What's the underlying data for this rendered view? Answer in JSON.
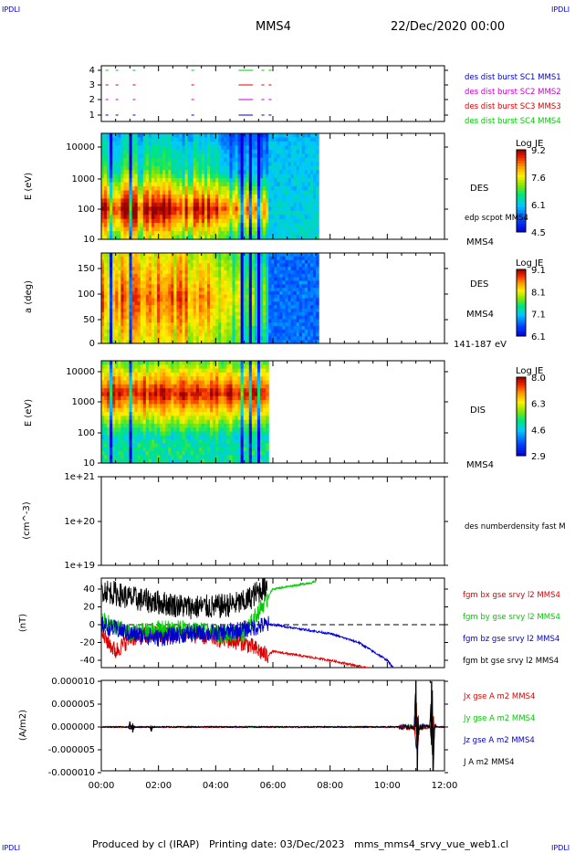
{
  "header": {
    "left_corner": "IPDLI",
    "right_corner": "IPDLI",
    "spacecraft": "MMS4",
    "date": "22/Dec/2020 00:00"
  },
  "footer": {
    "produced_by": "Produced by cl (IRAP)",
    "printing_date": "Printing date: 03/Dec/2023",
    "filename": "mms_mms4_srvy_vue_web1.cl",
    "left_corner": "IPDLI",
    "right_corner": "IPDLI"
  },
  "time_axis": {
    "ticks": [
      "00:00",
      "02:00",
      "04:00",
      "06:00",
      "08:00",
      "10:00",
      "12:00"
    ],
    "range_hours": [
      0,
      12
    ]
  },
  "colors": {
    "red": "#dd0000",
    "green": "#00cc00",
    "blue": "#0000cc",
    "black": "#000000",
    "magenta": "#cc00cc",
    "label_blue": "#0000cc",
    "label_magenta": "#cc00cc",
    "label_red": "#dd0000",
    "label_green": "#00cc00"
  },
  "chart_data": [
    {
      "type": "scatter",
      "panel": "burst",
      "yticks": [
        "4",
        "3",
        "2",
        "1"
      ],
      "legend": [
        {
          "label": "des dist burst SC1 MMS1",
          "color": "#0000cc"
        },
        {
          "label": "des dist burst SC2 MMS2",
          "color": "#cc00cc"
        },
        {
          "label": "des dist burst SC3 MMS3",
          "color": "#dd0000"
        },
        {
          "label": "des dist burst SC4 MMS4",
          "color": "#00cc00"
        }
      ],
      "series": [
        {
          "level": 4,
          "color": "#00cc00",
          "intervals_hours": [
            [
              0.15,
              0.2
            ],
            [
              0.5,
              0.55
            ],
            [
              1.1,
              1.15
            ],
            [
              3.15,
              3.2
            ],
            [
              4.8,
              5.3
            ],
            [
              5.6,
              5.7
            ],
            [
              5.85,
              5.95
            ]
          ]
        },
        {
          "level": 3,
          "color": "#dd0000",
          "intervals_hours": [
            [
              0.15,
              0.2
            ],
            [
              0.5,
              0.55
            ],
            [
              1.1,
              1.15
            ],
            [
              3.15,
              3.2
            ],
            [
              4.8,
              5.3
            ],
            [
              5.6,
              5.7
            ],
            [
              5.85,
              5.95
            ]
          ]
        },
        {
          "level": 2,
          "color": "#cc00cc",
          "intervals_hours": [
            [
              0.15,
              0.2
            ],
            [
              0.5,
              0.55
            ],
            [
              1.1,
              1.15
            ],
            [
              3.15,
              3.2
            ],
            [
              4.8,
              5.3
            ],
            [
              5.6,
              5.7
            ],
            [
              5.85,
              5.95
            ]
          ]
        },
        {
          "level": 1,
          "color": "#0000cc",
          "intervals_hours": [
            [
              0.15,
              0.2
            ],
            [
              0.5,
              0.55
            ],
            [
              1.1,
              1.15
            ],
            [
              3.15,
              3.2
            ],
            [
              4.8,
              5.3
            ],
            [
              5.6,
              5.7
            ],
            [
              5.85,
              5.95
            ]
          ]
        }
      ]
    },
    {
      "type": "heatmap",
      "panel": "des_energy",
      "ylabel": "E (eV)",
      "yticks": [
        "10000",
        "1000",
        "100",
        "10"
      ],
      "ylim_log": [
        10,
        30000
      ],
      "species": "DES",
      "overlay_label": "edp scpot MMS4",
      "bottom_label": "MMS4",
      "colorbar": {
        "title": "Log JE",
        "ticks": [
          "9.2",
          "7.6",
          "6.1",
          "4.5"
        ]
      },
      "data_end_hours": 7.6
    },
    {
      "type": "heatmap",
      "panel": "des_pitch",
      "ylabel": "a (deg)",
      "yticks": [
        "150",
        "100",
        "50",
        "0"
      ],
      "ylim": [
        0,
        180
      ],
      "species": "DES",
      "sc_label": "MMS4",
      "bottom_label": "141-187 eV",
      "colorbar": {
        "title": "Log JE",
        "ticks": [
          "9.1",
          "8.1",
          "7.1",
          "6.1"
        ]
      },
      "data_end_hours": 7.6
    },
    {
      "type": "heatmap",
      "panel": "dis_energy",
      "ylabel": "E (eV)",
      "yticks": [
        "10000",
        "1000",
        "100",
        "10"
      ],
      "ylim_log": [
        10,
        30000
      ],
      "species": "DIS",
      "bottom_label": "MMS4",
      "colorbar": {
        "title": "Log JE",
        "ticks": [
          "8.0",
          "6.3",
          "4.6",
          "2.9"
        ]
      },
      "data_end_hours": 7.6
    },
    {
      "type": "line",
      "panel": "density",
      "ylabel": "(cm^-3)",
      "yticks": [
        "1e+21",
        "1e+20",
        "1e+19"
      ],
      "legend": [
        {
          "label": "des numberdensity fast M",
          "color": "#000000"
        }
      ],
      "values": []
    },
    {
      "type": "line",
      "panel": "magnetic",
      "ylabel": "(nT)",
      "yticks": [
        "40",
        "20",
        "0",
        "-20",
        "-40"
      ],
      "ylim": [
        -50,
        50
      ],
      "legend": [
        {
          "label": "fgm bx gse srvy l2 MMS4",
          "color": "#dd0000"
        },
        {
          "label": "fgm by gse srvy l2 MMS4",
          "color": "#00cc00"
        },
        {
          "label": "fgm bz gse srvy l2 MMS4",
          "color": "#0000cc"
        },
        {
          "label": "fgm bt gse srvy l2 MMS4",
          "color": "#000000"
        }
      ],
      "series": [
        {
          "name": "fgm bx gse srvy l2 MMS4",
          "x": [
            0,
            0.5,
            1,
            2,
            3,
            4,
            5,
            5.8,
            6,
            7,
            8,
            9.5
          ],
          "y": [
            -10,
            -30,
            -15,
            -10,
            -10,
            -15,
            -20,
            -35,
            -30,
            -35,
            -40,
            -50
          ]
        },
        {
          "name": "fgm by gse srvy l2 MMS4",
          "x": [
            0,
            1,
            2,
            3,
            4,
            5,
            5.8,
            6,
            7.5
          ],
          "y": [
            5,
            -10,
            -5,
            -5,
            -10,
            -10,
            30,
            40,
            48
          ]
        },
        {
          "name": "fgm bz gse srvy l2 MMS4",
          "x": [
            0,
            1,
            2,
            3,
            4,
            5,
            5.8,
            6,
            7,
            8,
            9,
            10,
            10.2
          ],
          "y": [
            0,
            -10,
            -15,
            -10,
            -10,
            -5,
            0,
            0,
            -5,
            -10,
            -20,
            -40,
            -48
          ]
        },
        {
          "name": "fgm bt gse srvy l2 MMS4",
          "x": [
            0,
            1,
            2,
            3,
            4,
            5,
            5.8
          ],
          "y": [
            40,
            30,
            25,
            20,
            20,
            25,
            45
          ]
        }
      ]
    },
    {
      "type": "line",
      "panel": "current",
      "ylabel": "(A/m2)",
      "yticks": [
        "0.000010",
        "0.000005",
        "0.000000",
        "-0.000005",
        "-0.000010"
      ],
      "ylim": [
        -1e-05,
        1e-05
      ],
      "legend": [
        {
          "label": "Jx gse A m2 MMS4",
          "color": "#dd0000"
        },
        {
          "label": "Jy gse A m2 MMS4",
          "color": "#00cc00"
        },
        {
          "label": "Jz gse A m2 MMS4",
          "color": "#0000cc"
        },
        {
          "label": "J A m2 MMS4",
          "color": "#000000"
        }
      ],
      "spikes": [
        {
          "x": 1.0,
          "y": 1.2e-06
        },
        {
          "x": 1.1,
          "y": -1.2e-06
        },
        {
          "x": 1.75,
          "y": -1e-06
        },
        {
          "x": 11.0,
          "y": 1e-05
        },
        {
          "x": 11.05,
          "y": -1e-05
        },
        {
          "x": 11.55,
          "y": 1e-05
        },
        {
          "x": 11.6,
          "y": -1e-05
        }
      ]
    }
  ]
}
